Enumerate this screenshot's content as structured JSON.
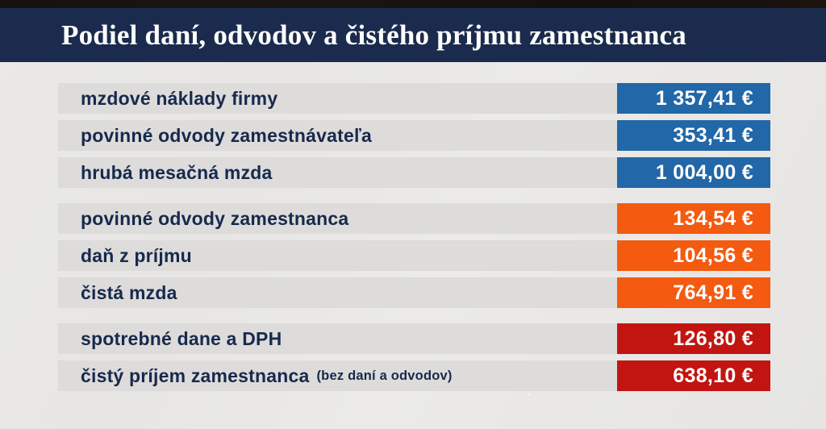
{
  "title": "Podiel daní, odvodov a čistého príjmu zamestnanca",
  "colors": {
    "header_bg": "#1b2b4d",
    "top_strip": "#17120e",
    "page_bg": "#e9e8e6",
    "row_bg": "#dddcda",
    "label_text": "#17294d",
    "value_text": "#ffffff",
    "blue": "#2267a7",
    "orange": "#f45a10",
    "red": "#c21511"
  },
  "groups": [
    {
      "name": "employer-costs",
      "rows": [
        {
          "label": "mzdové náklady firmy",
          "note": "",
          "value": "1 357,41 €"
        },
        {
          "label": "povinné odvody zamestnávateľa",
          "note": "",
          "value": "353,41 €"
        },
        {
          "label": "hrubá mesačná mzda",
          "note": "",
          "value": "1 004,00 €"
        }
      ]
    },
    {
      "name": "employee-deductions",
      "rows": [
        {
          "label": "povinné odvody zamestnanca",
          "note": "",
          "value": "134,54 €"
        },
        {
          "label": "daň z príjmu",
          "note": "",
          "value": "104,56 €"
        },
        {
          "label": "čistá mzda",
          "note": "",
          "value": "764,91 €"
        }
      ]
    },
    {
      "name": "net-income",
      "rows": [
        {
          "label": "spotrebné dane a DPH",
          "note": "",
          "value": "126,80 €"
        },
        {
          "label": "čistý príjem zamestnanca",
          "note": "(bez daní a odvodov)",
          "value": "638,10 €"
        }
      ]
    }
  ],
  "chart_data": {
    "type": "table",
    "title": "Podiel daní, odvodov a čistého príjmu zamestnanca",
    "columns": [
      "položka",
      "suma (€)"
    ],
    "rows": [
      {
        "label": "mzdové náklady firmy",
        "value": 1357.41,
        "group": "employer-costs",
        "color": "#2267a7"
      },
      {
        "label": "povinné odvody zamestnávateľa",
        "value": 353.41,
        "group": "employer-costs",
        "color": "#2267a7"
      },
      {
        "label": "hrubá mesačná mzda",
        "value": 1004.0,
        "group": "employer-costs",
        "color": "#2267a7"
      },
      {
        "label": "povinné odvody zamestnanca",
        "value": 134.54,
        "group": "employee-deductions",
        "color": "#f45a10"
      },
      {
        "label": "daň z príjmu",
        "value": 104.56,
        "group": "employee-deductions",
        "color": "#f45a10"
      },
      {
        "label": "čistá mzda",
        "value": 764.91,
        "group": "employee-deductions",
        "color": "#f45a10"
      },
      {
        "label": "spotrebné dane a DPH",
        "value": 126.8,
        "group": "net-income",
        "color": "#c21511"
      },
      {
        "label": "čistý príjem zamestnanca (bez daní a odvodov)",
        "value": 638.1,
        "group": "net-income",
        "color": "#c21511"
      }
    ],
    "currency": "EUR"
  }
}
